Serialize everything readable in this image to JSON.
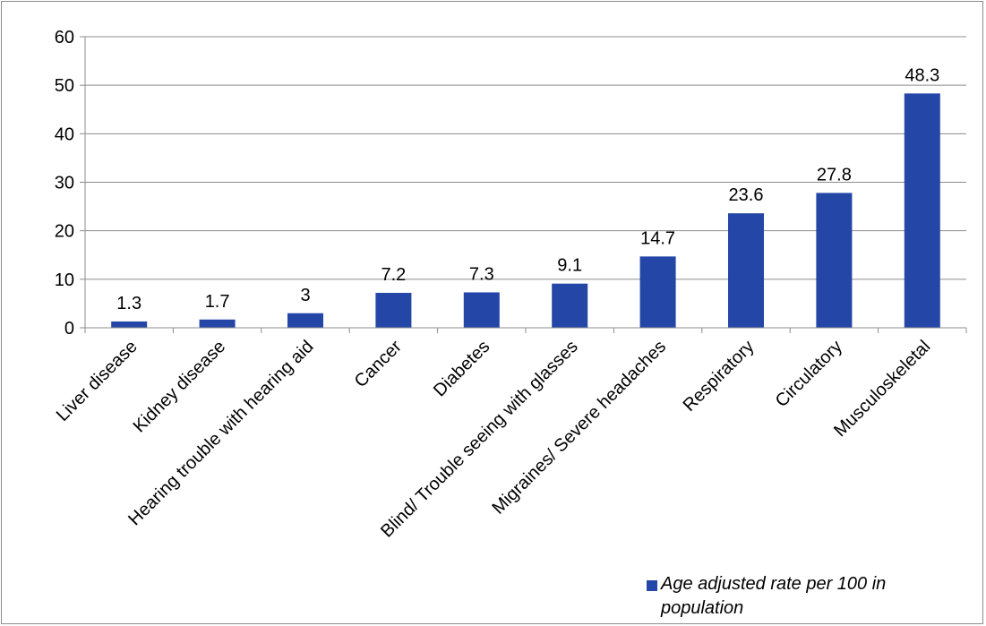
{
  "chart_data": {
    "type": "bar",
    "title": "",
    "xlabel": "",
    "ylabel": "",
    "categories": [
      "Liver disease",
      "Kidney disease",
      "Hearing trouble with hearing aid",
      "Cancer",
      "Diabetes",
      "Blind/ Trouble seeing with glasses",
      "Migraines/ Severe headaches",
      "Respiratory",
      "Circulatory",
      "Musculoskeletal"
    ],
    "series": [
      {
        "name": "Age adjusted rate per 100 in population",
        "values": [
          1.3,
          1.7,
          3,
          7.2,
          7.3,
          9.1,
          14.7,
          23.6,
          27.8,
          48.3
        ],
        "data_labels": [
          "1.3",
          "1.7",
          "3",
          "7.2",
          "7.3",
          "9.1",
          "14.7",
          "23.6",
          "27.8",
          "48.3"
        ]
      }
    ],
    "ylim": [
      0,
      60
    ],
    "yticks": [
      "0",
      "10",
      "20",
      "30",
      "40",
      "50",
      "60"
    ],
    "grid": true,
    "legend_position": "bottom-right"
  },
  "legend": {
    "label": "Age adjusted rate per 100 in population"
  },
  "colors": {
    "bar": "#2446a6",
    "grid": "#8c8c8c",
    "axis": "#8c8c8c"
  }
}
